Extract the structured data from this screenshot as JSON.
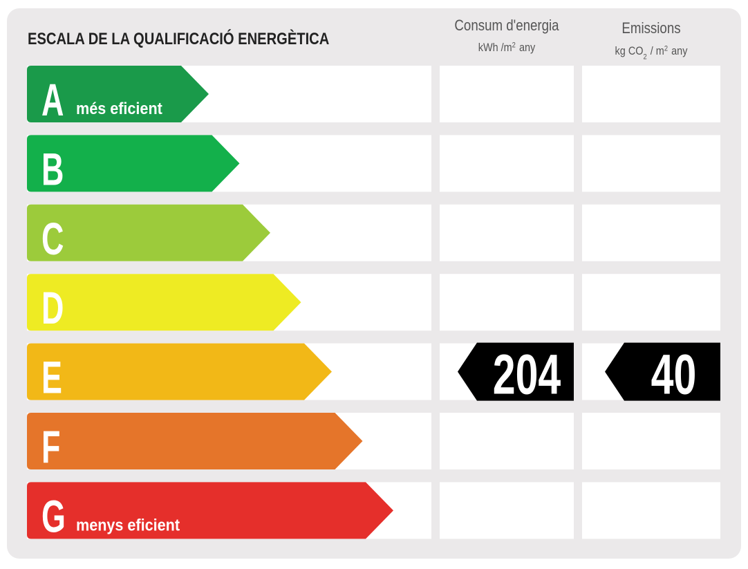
{
  "header": {
    "title": "ESCALA DE LA QUALIFICACIÓ ENERGÈTICA"
  },
  "columns": [
    {
      "title": "Consum d'energia",
      "unit_parts": [
        {
          "text": "kWh /m"
        },
        {
          "sup": "2"
        },
        {
          "text": "any"
        }
      ]
    },
    {
      "title": "Emissions",
      "unit_parts": [
        {
          "text": "kg CO"
        },
        {
          "sub": "2"
        },
        {
          "text": "/ m"
        },
        {
          "sup": "2"
        },
        {
          "text": "any"
        }
      ]
    }
  ],
  "rows": [
    {
      "letter": "A",
      "label": "més eficient",
      "color": "#1a9a4a"
    },
    {
      "letter": "B",
      "color": "#13b04b"
    },
    {
      "letter": "C",
      "color": "#9ccb3b"
    },
    {
      "letter": "D",
      "color": "#eeeb23"
    },
    {
      "letter": "E",
      "color": "#f2b817"
    },
    {
      "letter": "F",
      "color": "#e5752a"
    },
    {
      "letter": "G",
      "label": "menys eficient",
      "color": "#e52f2b"
    }
  ],
  "rating": {
    "row": 4,
    "values": [
      204,
      40
    ]
  }
}
